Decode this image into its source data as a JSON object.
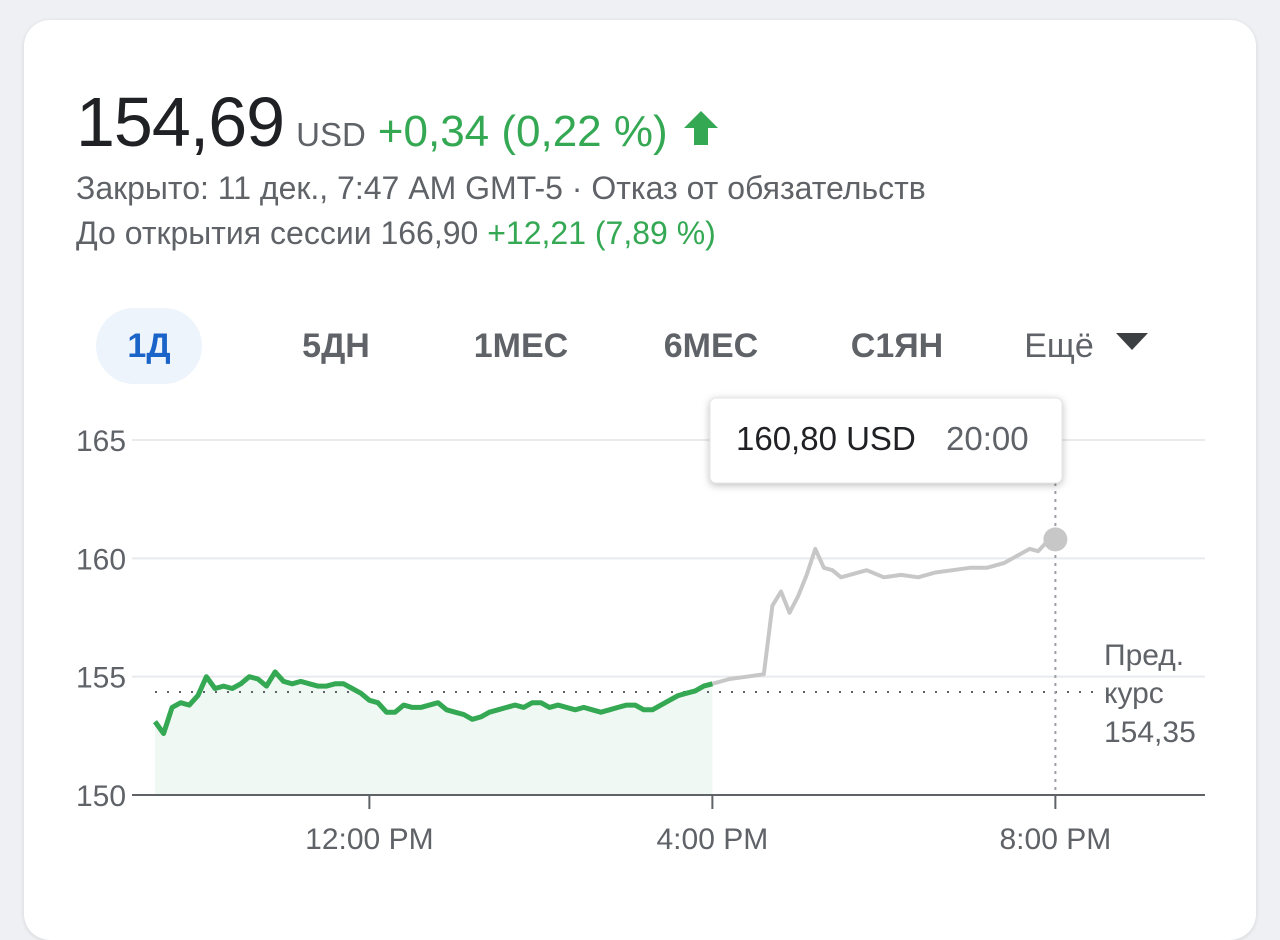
{
  "quote": {
    "price": "154,69",
    "currency": "USD",
    "change": "+0,34 (0,22 %)",
    "status": "Закрыто: 11 дек., 7:47 AM GMT-5 · Отказ от обязательств",
    "premarket_label": "До открытия сессии 166,90",
    "premarket_change": "+12,21 (7,89 %)"
  },
  "tabs": [
    {
      "label": "1Д",
      "active": true
    },
    {
      "label": "5ДН",
      "active": false
    },
    {
      "label": "1МЕС",
      "active": false
    },
    {
      "label": "6МЕС",
      "active": false
    },
    {
      "label": "С1ЯН",
      "active": false
    },
    {
      "label": "Ещё",
      "active": false
    }
  ],
  "colors": {
    "up": "#34a853",
    "afterhours": "#c7c7c7",
    "active_tab": "#1a63c9"
  },
  "icons": {
    "change_arrow": "arrow-up-icon",
    "more": "caret-down-icon"
  },
  "tooltip": {
    "value": "160,80 USD",
    "time": "20:00"
  },
  "prev_close": {
    "line1": "Пред.",
    "line2": "курс",
    "value": "154,35"
  },
  "chart_data": {
    "type": "line",
    "y_ticks": [
      "165",
      "160",
      "155",
      "150"
    ],
    "ylim": [
      150,
      165
    ],
    "x_ticks": [
      "12:00 PM",
      "4:00 PM",
      "8:00 PM"
    ],
    "x_tick_hours": [
      12,
      16,
      20
    ],
    "xlim": [
      9.5,
      21.6
    ],
    "prev_close": 154.35,
    "grid": true,
    "series": [
      {
        "session": "regular",
        "x": [
          9.5,
          9.6,
          9.7,
          9.8,
          9.9,
          10.0,
          10.1,
          10.2,
          10.3,
          10.4,
          10.5,
          10.6,
          10.7,
          10.8,
          10.9,
          11.0,
          11.1,
          11.2,
          11.3,
          11.4,
          11.5,
          11.6,
          11.7,
          11.8,
          11.9,
          12.0,
          12.1,
          12.2,
          12.3,
          12.4,
          12.5,
          12.6,
          12.7,
          12.8,
          12.9,
          13.0,
          13.1,
          13.2,
          13.3,
          13.4,
          13.5,
          13.6,
          13.7,
          13.8,
          13.9,
          14.0,
          14.1,
          14.2,
          14.3,
          14.4,
          14.5,
          14.6,
          14.7,
          14.8,
          14.9,
          15.0,
          15.1,
          15.2,
          15.3,
          15.4,
          15.5,
          15.6,
          15.7,
          15.8,
          15.9,
          16.0
        ],
        "values": [
          153.1,
          152.6,
          153.7,
          153.9,
          153.8,
          154.2,
          155.0,
          154.5,
          154.6,
          154.5,
          154.7,
          155.0,
          154.9,
          154.6,
          155.2,
          154.8,
          154.7,
          154.8,
          154.7,
          154.6,
          154.6,
          154.7,
          154.7,
          154.5,
          154.3,
          154.0,
          153.9,
          153.5,
          153.5,
          153.8,
          153.7,
          153.7,
          153.8,
          153.9,
          153.6,
          153.5,
          153.4,
          153.2,
          153.3,
          153.5,
          153.6,
          153.7,
          153.8,
          153.7,
          153.9,
          153.9,
          153.7,
          153.8,
          153.7,
          153.6,
          153.7,
          153.6,
          153.5,
          153.6,
          153.7,
          153.8,
          153.8,
          153.6,
          153.6,
          153.8,
          154.0,
          154.2,
          154.3,
          154.4,
          154.6,
          154.7
        ]
      },
      {
        "session": "after-hours",
        "x": [
          16.0,
          16.2,
          16.4,
          16.6,
          16.7,
          16.8,
          16.9,
          17.0,
          17.1,
          17.2,
          17.3,
          17.4,
          17.5,
          17.6,
          17.8,
          18.0,
          18.2,
          18.4,
          18.6,
          18.8,
          19.0,
          19.2,
          19.4,
          19.6,
          19.7,
          19.8,
          19.9,
          20.0
        ],
        "values": [
          154.7,
          154.9,
          155.0,
          155.1,
          158.0,
          158.6,
          157.7,
          158.4,
          159.3,
          160.4,
          159.6,
          159.5,
          159.2,
          159.3,
          159.5,
          159.2,
          159.3,
          159.2,
          159.4,
          159.5,
          159.6,
          159.6,
          159.8,
          160.2,
          160.4,
          160.3,
          160.7,
          160.8
        ]
      }
    ]
  }
}
